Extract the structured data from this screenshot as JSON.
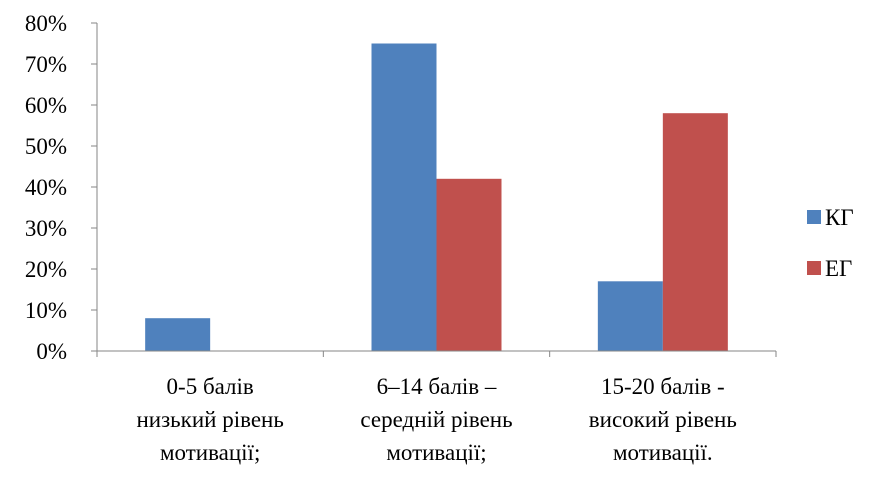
{
  "chart_data": {
    "type": "bar",
    "title": "",
    "xlabel": "",
    "ylabel": "",
    "ylim": [
      0,
      80
    ],
    "y_ticks": [
      "0%",
      "10%",
      "20%",
      "30%",
      "40%",
      "50%",
      "60%",
      "70%",
      "80%"
    ],
    "y_tick_values": [
      0,
      10,
      20,
      30,
      40,
      50,
      60,
      70,
      80
    ],
    "grid": false,
    "legend_position": "right",
    "categories": [
      [
        "0-5 балів",
        "низький рівень",
        "мотивації;"
      ],
      [
        "6–14 балів –",
        "середній рівень",
        "мотивації;"
      ],
      [
        "15-20 балів -",
        "високий рівень",
        "мотивації."
      ]
    ],
    "series": [
      {
        "name": "КГ",
        "color": "#4F81BD",
        "values": [
          8,
          75,
          17
        ]
      },
      {
        "name": "ЕГ",
        "color": "#C0504D",
        "values": [
          0,
          42,
          58
        ]
      }
    ]
  }
}
